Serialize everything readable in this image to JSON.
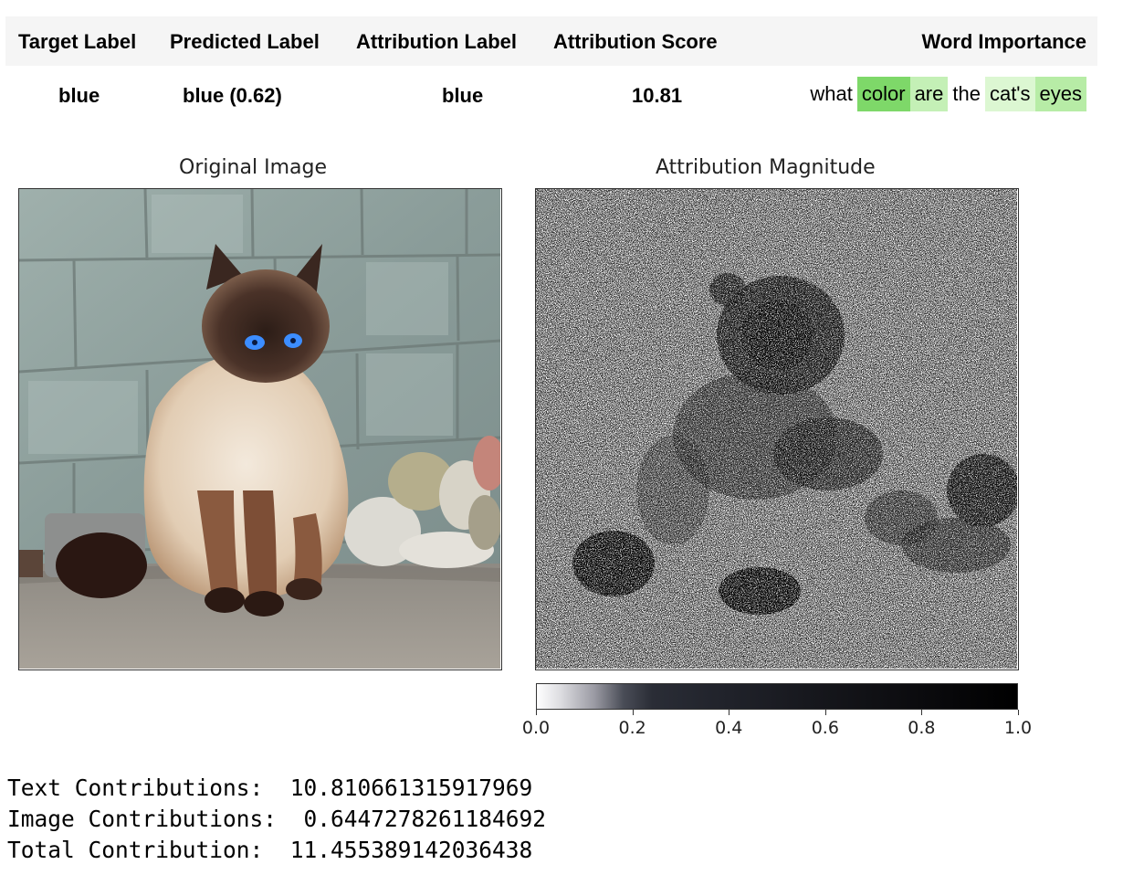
{
  "table": {
    "headers": {
      "target_label": "Target Label",
      "predicted_label": "Predicted Label",
      "attribution_label": "Attribution Label",
      "attribution_score": "Attribution Score",
      "word_importance": "Word Importance"
    },
    "row": {
      "target_label": "blue",
      "predicted_label": "blue (0.62)",
      "attribution_label": "blue",
      "attribution_score": "10.81",
      "words": [
        {
          "text": "what",
          "color": "#ffffff"
        },
        {
          "text": "color",
          "color": "#7ed869"
        },
        {
          "text": "are",
          "color": "#c4f0b6"
        },
        {
          "text": "the",
          "color": "#ffffff"
        },
        {
          "text": "cat's",
          "color": "#dcf7d2"
        },
        {
          "text": "eyes",
          "color": "#b7eca6"
        }
      ]
    }
  },
  "figure": {
    "original_title": "Original Image",
    "attribution_title": "Attribution Magnitude",
    "colorbar_ticks": [
      "0.0",
      "0.2",
      "0.4",
      "0.6",
      "0.8",
      "1.0"
    ]
  },
  "contributions": {
    "text_label": "Text Contributions:",
    "text_value": "10.810661315917969",
    "image_label": "Image Contributions:",
    "image_value": "0.6447278261184692",
    "total_label": "Total Contribution:",
    "total_value": "11.455389142036438"
  }
}
